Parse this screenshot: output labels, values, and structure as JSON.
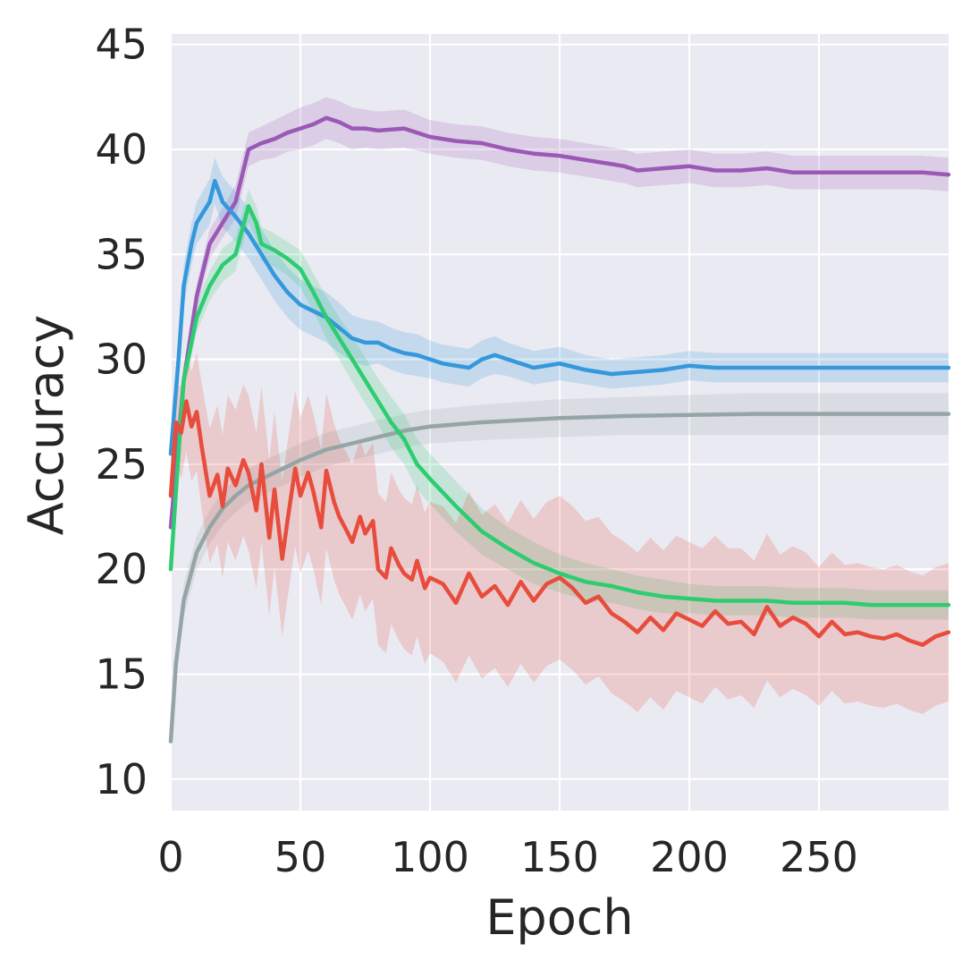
{
  "chart_data": {
    "type": "line",
    "title": "",
    "xlabel": "Epoch",
    "ylabel": "Accuracy",
    "xlim": [
      0,
      300
    ],
    "ylim": [
      8.5,
      45.5
    ],
    "grid": true,
    "background": "#EAEAF2",
    "x_ticks": [
      0,
      50,
      100,
      150,
      200,
      250
    ],
    "x_tick_labels": [
      "0",
      "50",
      "100",
      "150",
      "200",
      "250"
    ],
    "y_ticks": [
      10,
      15,
      20,
      25,
      30,
      35,
      40,
      45
    ],
    "y_tick_labels": [
      "10",
      "15",
      "20",
      "25",
      "30",
      "35",
      "40",
      "45"
    ],
    "series": [
      {
        "name": "gray",
        "color": "#95A5A6",
        "x": [
          0,
          2,
          5,
          10,
          15,
          20,
          25,
          30,
          40,
          50,
          60,
          70,
          80,
          90,
          100,
          120,
          150,
          175,
          200,
          225,
          250,
          275,
          300
        ],
        "values": [
          11.8,
          15.5,
          18.5,
          20.8,
          22.0,
          22.9,
          23.5,
          24.0,
          24.6,
          25.2,
          25.7,
          26.0,
          26.3,
          26.6,
          26.8,
          27.0,
          27.2,
          27.3,
          27.35,
          27.4,
          27.4,
          27.4,
          27.4
        ],
        "band": [
          0.2,
          0.7,
          0.8,
          0.8,
          0.8,
          0.8,
          0.8,
          0.8,
          0.8,
          0.8,
          0.8,
          0.8,
          0.8,
          0.8,
          0.8,
          0.85,
          0.9,
          0.9,
          0.95,
          1.0,
          1.0,
          1.0,
          1.0
        ]
      },
      {
        "name": "purple",
        "color": "#9B59B6",
        "x": [
          0,
          5,
          10,
          15,
          20,
          25,
          30,
          35,
          40,
          45,
          50,
          55,
          60,
          65,
          70,
          75,
          80,
          90,
          100,
          110,
          120,
          130,
          140,
          150,
          160,
          170,
          175,
          180,
          190,
          200,
          210,
          220,
          230,
          240,
          250,
          260,
          270,
          280,
          290,
          300
        ],
        "values": [
          22.0,
          29.0,
          33.0,
          35.5,
          36.5,
          37.5,
          40.0,
          40.3,
          40.5,
          40.8,
          41.0,
          41.2,
          41.5,
          41.3,
          41.0,
          41.0,
          40.9,
          41.0,
          40.6,
          40.4,
          40.3,
          40.0,
          39.8,
          39.7,
          39.5,
          39.3,
          39.2,
          39.0,
          39.1,
          39.2,
          39.0,
          39.0,
          39.1,
          38.9,
          38.9,
          38.9,
          38.9,
          38.9,
          38.9,
          38.8
        ],
        "band": [
          0.3,
          0.5,
          0.6,
          0.7,
          0.7,
          0.8,
          0.8,
          0.8,
          0.9,
          0.9,
          1.0,
          1.0,
          1.0,
          1.0,
          1.0,
          0.9,
          0.9,
          0.9,
          0.8,
          0.8,
          0.8,
          0.8,
          0.8,
          0.8,
          0.8,
          0.8,
          0.8,
          0.8,
          0.8,
          0.8,
          0.8,
          0.8,
          0.8,
          0.8,
          0.8,
          0.8,
          0.8,
          0.8,
          0.8,
          0.8
        ]
      },
      {
        "name": "blue",
        "color": "#3498DB",
        "x": [
          0,
          3,
          5,
          8,
          10,
          15,
          17,
          20,
          25,
          30,
          35,
          40,
          45,
          50,
          55,
          60,
          65,
          70,
          75,
          80,
          85,
          90,
          95,
          100,
          105,
          110,
          115,
          120,
          125,
          130,
          140,
          150,
          160,
          170,
          180,
          190,
          200,
          210,
          220,
          230,
          240,
          250,
          260,
          270,
          280,
          290,
          300
        ],
        "values": [
          25.5,
          30.0,
          33.5,
          35.5,
          36.5,
          37.5,
          38.5,
          37.5,
          36.8,
          36.0,
          35.0,
          34.0,
          33.2,
          32.6,
          32.3,
          32.0,
          31.5,
          31.0,
          30.8,
          30.8,
          30.5,
          30.3,
          30.2,
          30.0,
          29.8,
          29.7,
          29.6,
          30.0,
          30.2,
          30.0,
          29.6,
          29.8,
          29.5,
          29.3,
          29.4,
          29.5,
          29.7,
          29.6,
          29.6,
          29.6,
          29.6,
          29.6,
          29.6,
          29.6,
          29.6,
          29.6,
          29.6
        ],
        "band": [
          0.5,
          0.8,
          1.0,
          1.0,
          1.0,
          1.1,
          1.1,
          1.2,
          1.2,
          1.2,
          1.2,
          1.2,
          1.2,
          1.2,
          1.2,
          1.2,
          1.2,
          1.1,
          1.1,
          1.0,
          1.0,
          1.0,
          1.0,
          0.9,
          0.9,
          0.9,
          0.9,
          0.9,
          0.9,
          0.8,
          0.8,
          0.8,
          0.7,
          0.7,
          0.7,
          0.7,
          0.7,
          0.7,
          0.7,
          0.7,
          0.7,
          0.7,
          0.7,
          0.7,
          0.7,
          0.7,
          0.7
        ]
      },
      {
        "name": "green",
        "color": "#2ECC71",
        "x": [
          0,
          3,
          5,
          10,
          15,
          20,
          25,
          30,
          33,
          35,
          40,
          45,
          50,
          55,
          60,
          65,
          70,
          75,
          80,
          85,
          90,
          95,
          100,
          110,
          120,
          130,
          140,
          150,
          160,
          170,
          180,
          190,
          200,
          210,
          220,
          230,
          240,
          250,
          260,
          270,
          280,
          290,
          300
        ],
        "values": [
          20.0,
          25.5,
          29.0,
          32.0,
          33.5,
          34.5,
          35.0,
          37.3,
          36.5,
          35.5,
          35.2,
          34.8,
          34.3,
          33.2,
          32.0,
          31.0,
          30.0,
          29.0,
          28.0,
          27.0,
          26.2,
          25.0,
          24.3,
          23.0,
          21.8,
          21.0,
          20.3,
          19.8,
          19.4,
          19.2,
          18.9,
          18.7,
          18.6,
          18.5,
          18.5,
          18.5,
          18.4,
          18.4,
          18.4,
          18.3,
          18.3,
          18.3,
          18.3
        ],
        "band": [
          0.3,
          0.5,
          0.6,
          0.7,
          0.7,
          0.8,
          0.8,
          0.8,
          0.8,
          0.8,
          0.8,
          0.8,
          0.9,
          0.9,
          1.0,
          1.0,
          1.1,
          1.1,
          1.1,
          1.2,
          1.2,
          1.2,
          1.2,
          1.2,
          1.1,
          1.0,
          1.0,
          0.9,
          0.9,
          0.8,
          0.8,
          0.8,
          0.7,
          0.7,
          0.7,
          0.7,
          0.7,
          0.7,
          0.7,
          0.7,
          0.7,
          0.7,
          0.7
        ]
      },
      {
        "name": "red",
        "color": "#E74C3C",
        "x": [
          0,
          2,
          4,
          6,
          8,
          10,
          12,
          15,
          18,
          20,
          22,
          25,
          28,
          30,
          33,
          35,
          38,
          40,
          43,
          45,
          48,
          50,
          53,
          55,
          58,
          60,
          63,
          65,
          68,
          70,
          73,
          75,
          78,
          80,
          83,
          85,
          88,
          90,
          93,
          95,
          98,
          100,
          105,
          110,
          115,
          120,
          125,
          130,
          135,
          140,
          145,
          150,
          155,
          160,
          165,
          170,
          175,
          180,
          185,
          190,
          195,
          200,
          205,
          210,
          215,
          220,
          225,
          230,
          235,
          240,
          245,
          250,
          255,
          260,
          265,
          270,
          275,
          280,
          285,
          290,
          295,
          300
        ],
        "values": [
          23.5,
          27.0,
          26.5,
          28.0,
          26.8,
          27.5,
          25.8,
          23.5,
          24.5,
          23.0,
          24.8,
          24.0,
          25.2,
          24.6,
          22.8,
          25.0,
          21.5,
          23.8,
          20.5,
          22.3,
          24.8,
          23.5,
          24.6,
          23.7,
          22.0,
          24.7,
          23.2,
          22.5,
          21.8,
          21.3,
          22.5,
          21.7,
          22.3,
          20.0,
          19.6,
          21.0,
          20.2,
          19.8,
          19.5,
          20.4,
          19.1,
          19.6,
          19.3,
          18.4,
          19.8,
          18.7,
          19.2,
          18.3,
          19.4,
          18.5,
          19.3,
          19.6,
          19.1,
          18.4,
          18.7,
          17.9,
          17.5,
          17.0,
          17.7,
          17.1,
          17.9,
          17.6,
          17.3,
          18.0,
          17.4,
          17.5,
          16.9,
          18.2,
          17.3,
          17.7,
          17.4,
          16.8,
          17.5,
          16.9,
          17.0,
          16.8,
          16.7,
          16.9,
          16.6,
          16.4,
          16.8,
          17.0
        ],
        "band": [
          1.0,
          1.8,
          2.2,
          2.4,
          2.6,
          2.8,
          3.0,
          3.2,
          3.3,
          3.4,
          3.5,
          3.6,
          3.6,
          3.7,
          3.7,
          3.7,
          3.7,
          3.7,
          3.7,
          3.7,
          3.7,
          3.7,
          3.7,
          3.7,
          3.7,
          3.7,
          3.7,
          3.7,
          3.7,
          3.7,
          3.7,
          3.7,
          3.7,
          3.6,
          3.6,
          3.6,
          3.6,
          3.6,
          3.6,
          3.6,
          3.6,
          3.6,
          3.7,
          3.8,
          3.9,
          3.9,
          3.9,
          3.9,
          3.9,
          3.9,
          3.9,
          3.9,
          3.9,
          3.9,
          3.8,
          3.8,
          3.8,
          3.8,
          3.8,
          3.8,
          3.7,
          3.7,
          3.7,
          3.6,
          3.6,
          3.5,
          3.5,
          3.5,
          3.4,
          3.4,
          3.4,
          3.3,
          3.3,
          3.3,
          3.3,
          3.3,
          3.3,
          3.3,
          3.3,
          3.3,
          3.3,
          3.3
        ]
      }
    ]
  }
}
